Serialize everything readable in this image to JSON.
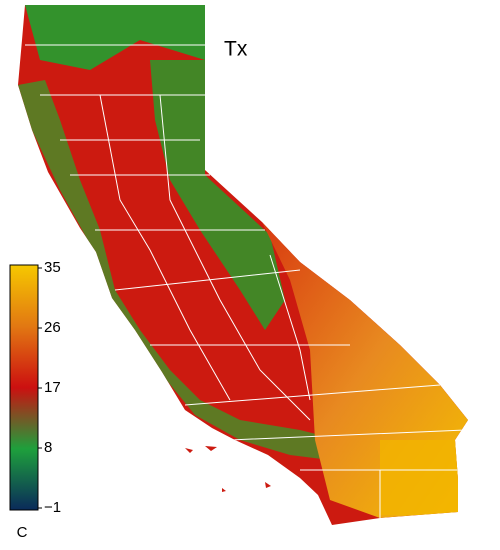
{
  "title": "Tx",
  "colorbar": {
    "label": "C",
    "lim": [
      -1,
      35
    ],
    "ticks": [
      {
        "value": -1,
        "label": "−1"
      },
      8,
      17,
      26,
      35
    ],
    "colors": [
      "#0a2a5a",
      "#1ea03c",
      "#cc1010",
      "#e27812",
      "#f6c800"
    ]
  }
}
